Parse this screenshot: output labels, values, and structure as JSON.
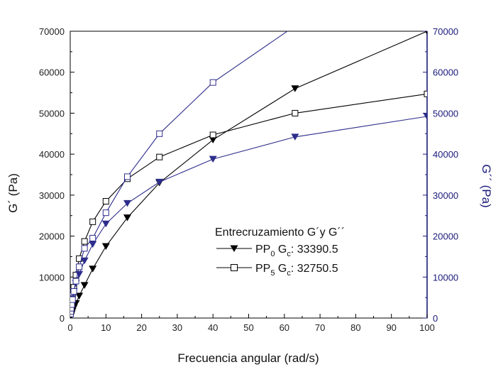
{
  "chart_data": {
    "type": "line",
    "xlabel": "Frecuencia angular (rad/s)",
    "ylabel_left": "G´ (Pa)",
    "ylabel_right": "G´´ (Pa)",
    "xlim": [
      0,
      100
    ],
    "ylim": [
      0,
      70000
    ],
    "xticks": [
      "0",
      "10",
      "20",
      "30",
      "40",
      "50",
      "60",
      "70",
      "80",
      "90",
      "100"
    ],
    "yticks": [
      "0",
      "10000",
      "20000",
      "30000",
      "40000",
      "50000",
      "60000",
      "70000"
    ],
    "colors": {
      "left_axis": "#000000",
      "right_axis": "#1a1a7a",
      "series_black": "#000000",
      "series_blue": "#2d2d8c"
    },
    "legend": {
      "title": "Entrecruzamiento G´y G´´",
      "entries": [
        {
          "base": "PP",
          "sub1": "0",
          "mid": " G",
          "sub2": "c",
          "tail": ": 33390.5",
          "marker": "triangle-filled"
        },
        {
          "base": "PP",
          "sub1": "5",
          "mid": " G",
          "sub2": "c",
          "tail": ": 32750.5",
          "marker": "square-open"
        }
      ]
    },
    "series": [
      {
        "marker": "triangle-filled",
        "color": "#000000",
        "axis": "left",
        "x": [
          0.1,
          0.16,
          0.25,
          0.4,
          0.63,
          1,
          1.6,
          2.5,
          4,
          6.3,
          10,
          16,
          25,
          40,
          63,
          100
        ],
        "y": [
          300,
          500,
          750,
          1100,
          1700,
          2500,
          3600,
          5400,
          8000,
          12000,
          17500,
          24500,
          33000,
          43500,
          56000,
          70000
        ]
      },
      {
        "marker": "square-open",
        "color": "#000000",
        "axis": "left",
        "x": [
          0.1,
          0.16,
          0.25,
          0.4,
          0.63,
          1,
          1.6,
          2.5,
          4,
          6.3,
          10,
          16,
          25,
          40,
          63,
          100
        ],
        "y": [
          1500,
          2200,
          3000,
          4000,
          5500,
          7500,
          10500,
          14500,
          18700,
          23500,
          28500,
          34000,
          39300,
          44700,
          50000,
          54700
        ]
      },
      {
        "marker": "triangle-filled",
        "color": "#2d2d8c",
        "axis": "right",
        "x": [
          0.1,
          0.16,
          0.25,
          0.4,
          0.63,
          1,
          1.6,
          2.5,
          4,
          6.3,
          10,
          16,
          25,
          40,
          63,
          100
        ],
        "y": [
          1200,
          1800,
          2600,
          3600,
          4800,
          6500,
          8500,
          10700,
          14000,
          18000,
          23000,
          28000,
          33200,
          38800,
          44200,
          49200
        ]
      },
      {
        "marker": "square-open",
        "color": "#2d2d8c",
        "axis": "right",
        "x": [
          0.1,
          0.16,
          0.25,
          0.4,
          0.63,
          1,
          1.6,
          2.5,
          4,
          6.3,
          10,
          16,
          25,
          40,
          62.5
        ],
        "y": [
          1000,
          1600,
          2400,
          3300,
          4500,
          6500,
          9000,
          12500,
          17000,
          19500,
          25700,
          34500,
          45000,
          57500,
          71000
        ]
      }
    ]
  }
}
